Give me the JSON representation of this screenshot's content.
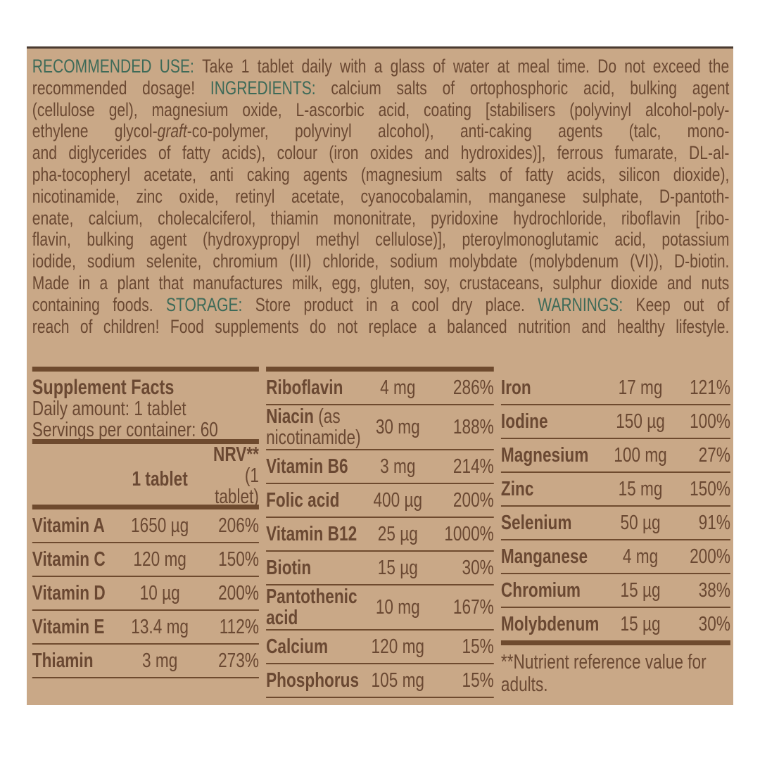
{
  "text_lines": [
    [
      {
        "t": "RECOMMENDED USE:",
        "s": "label"
      },
      {
        "t": " Take 1 tablet daily with a glass of water at meal time. Do not exceed the",
        "s": ""
      }
    ],
    [
      {
        "t": "recommended dosage! ",
        "s": ""
      },
      {
        "t": "INGREDIENTS:",
        "s": "label"
      },
      {
        "t": " calcium salts of ortophosphoric acid, bulking agent",
        "s": ""
      }
    ],
    [
      {
        "t": "(cellulose gel), magnesium oxide, L-ascorbic acid, coating [stabilisers (polyvinyl alcohol-poly-",
        "s": ""
      }
    ],
    [
      {
        "t": "ethylene glycol-",
        "s": ""
      },
      {
        "t": "graft",
        "s": "italic"
      },
      {
        "t": "-co-polymer, polyvinyl alcohol), anti-caking agents (talc, mono-",
        "s": ""
      }
    ],
    [
      {
        "t": "and diglycerides of fatty acids), colour (iron oxides and hydroxides)], ferrous fumarate, DL-al-",
        "s": ""
      }
    ],
    [
      {
        "t": "pha-tocopheryl acetate, anti caking agents (magnesium salts of fatty acids, silicon dioxide),",
        "s": ""
      }
    ],
    [
      {
        "t": "nicotinamide, zinc oxide, retinyl acetate, cyanocobalamin, manganese sulphate, D-pantoth-",
        "s": ""
      }
    ],
    [
      {
        "t": "enate, calcium, cholecalciferol, thiamin mononitrate, pyridoxine hydrochloride, riboflavin [ribo-",
        "s": ""
      }
    ],
    [
      {
        "t": "flavin, bulking agent (hydroxypropyl methyl cellulose)], pteroylmonoglutamic acid, potassium",
        "s": ""
      }
    ],
    [
      {
        "t": "iodide, sodium selenite, chromium (III) chloride, sodium molybdate (molybdenum (VI)), D-biotin.",
        "s": ""
      }
    ],
    [
      {
        "t": "Made in a plant that manufactures milk, egg, gluten, soy, crustaceans, sulphur dioxide and nuts",
        "s": ""
      }
    ],
    [
      {
        "t": "containing foods. ",
        "s": ""
      },
      {
        "t": "STORAGE:",
        "s": "label"
      },
      {
        "t": " Store product in a cool dry place. ",
        "s": ""
      },
      {
        "t": "WARNINGS:",
        "s": "label"
      },
      {
        "t": " Keep out of",
        "s": ""
      }
    ],
    [
      {
        "t": "reach of  children! Food supplements do not replace a balanced nutrition and healthy lifestyle.",
        "s": ""
      }
    ]
  ],
  "facts": {
    "title": "Supplement Facts",
    "daily_amount": "Daily amount: 1 tablet",
    "servings": "Servings per container: 60",
    "col_amount": "1 tablet",
    "col_nrv": "NRV**",
    "col_nrv_sub": "(1 tablet)"
  },
  "col1": [
    {
      "name": "Vitamin A",
      "amount": "1650 µg",
      "nrv": "206%"
    },
    {
      "name": "Vitamin C",
      "amount": "120 mg",
      "nrv": "150%"
    },
    {
      "name": "Vitamin D",
      "amount": "10 µg",
      "nrv": "200%"
    },
    {
      "name": "Vitamin E",
      "amount": "13.4 mg",
      "nrv": "112%"
    },
    {
      "name": "Thiamin",
      "amount": "3 mg",
      "nrv": "273%"
    }
  ],
  "col2": [
    {
      "name": "Riboflavin",
      "amount": "4 mg",
      "nrv": "286%"
    },
    {
      "name": "Niacin",
      "name_sub": "(as nicotinamide)",
      "amount": "30 mg",
      "nrv": "188%"
    },
    {
      "name": "Vitamin B6",
      "amount": "3 mg",
      "nrv": "214%"
    },
    {
      "name": "Folic acid",
      "amount": "400 µg",
      "nrv": "200%"
    },
    {
      "name": "Vitamin B12",
      "amount": "25 µg",
      "nrv": "1000%"
    },
    {
      "name": "Biotin",
      "amount": "15 µg",
      "nrv": "30%"
    },
    {
      "name": "Pantothenic acid",
      "amount": "10 mg",
      "nrv": "167%"
    },
    {
      "name": "Calcium",
      "amount": "120 mg",
      "nrv": "15%"
    },
    {
      "name": "Phosphorus",
      "amount": "105 mg",
      "nrv": "15%"
    }
  ],
  "col3": [
    {
      "name": "Iron",
      "amount": "17 mg",
      "nrv": "121%"
    },
    {
      "name": "Iodine",
      "amount": "150 µg",
      "nrv": "100%"
    },
    {
      "name": "Magnesium",
      "amount": "100 mg",
      "nrv": "27%"
    },
    {
      "name": "Zinc",
      "amount": "15 mg",
      "nrv": "150%"
    },
    {
      "name": "Selenium",
      "amount": "50 µg",
      "nrv": "91%"
    },
    {
      "name": "Manganese",
      "amount": "4 mg",
      "nrv": "200%"
    },
    {
      "name": "Chromium",
      "amount": "15 µg",
      "nrv": "38%"
    },
    {
      "name": "Molybdenum",
      "amount": "15 µg",
      "nrv": "30%"
    }
  ],
  "footnote": "**Nutrient reference value for adults.",
  "colors": {
    "background": "#c9a887",
    "text": "#6a4832",
    "label": "#3d6a58",
    "rule": "#6e4a2e"
  }
}
